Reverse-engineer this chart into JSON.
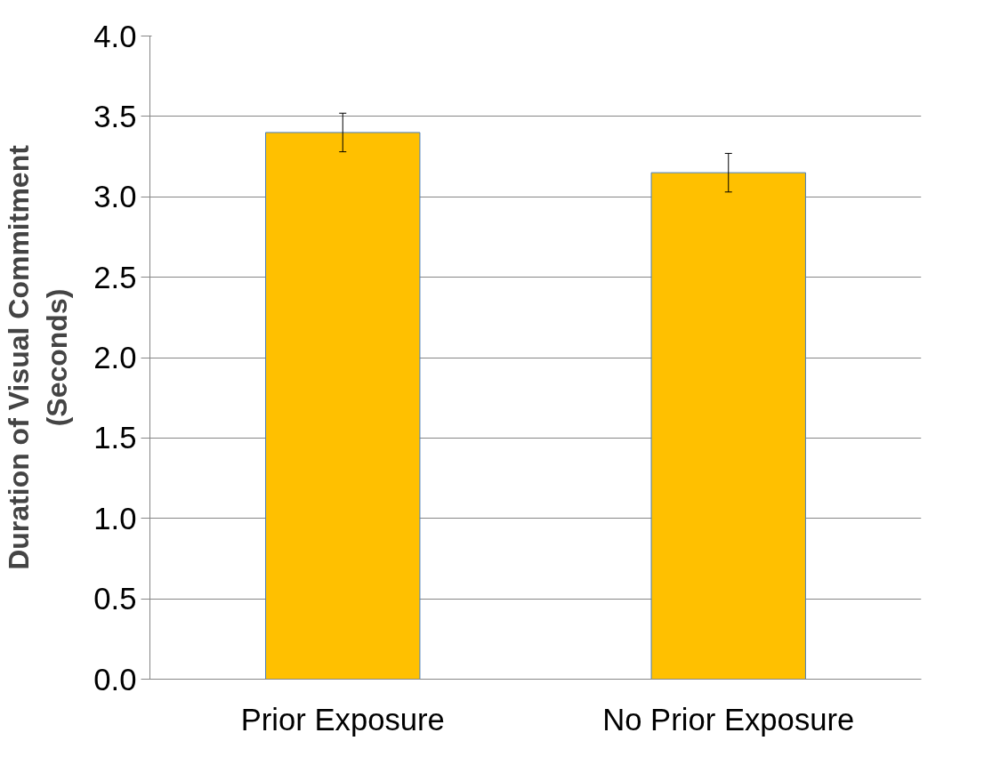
{
  "chart_data": {
    "type": "bar",
    "ylabel": "Duration of Visual Commitment\n(Seconds)",
    "categories": [
      "Prior Exposure",
      "No Prior Exposure"
    ],
    "values": [
      3.4,
      3.15
    ],
    "errors": [
      0.12,
      0.12
    ],
    "color": "#ffc000",
    "ylim": [
      0,
      4
    ],
    "yticks": [
      {
        "value": 0,
        "label": "0.0"
      },
      {
        "value": 0.5,
        "label": "0.5"
      },
      {
        "value": 1,
        "label": "1.0"
      },
      {
        "value": 1.5,
        "label": "1.5"
      },
      {
        "value": 2,
        "label": "2.0"
      },
      {
        "value": 2.5,
        "label": "2.5"
      },
      {
        "value": 3,
        "label": "3.0"
      },
      {
        "value": 3.5,
        "label": "3.5"
      },
      {
        "value": 4,
        "label": "4.0"
      }
    ],
    "grid": "y"
  }
}
